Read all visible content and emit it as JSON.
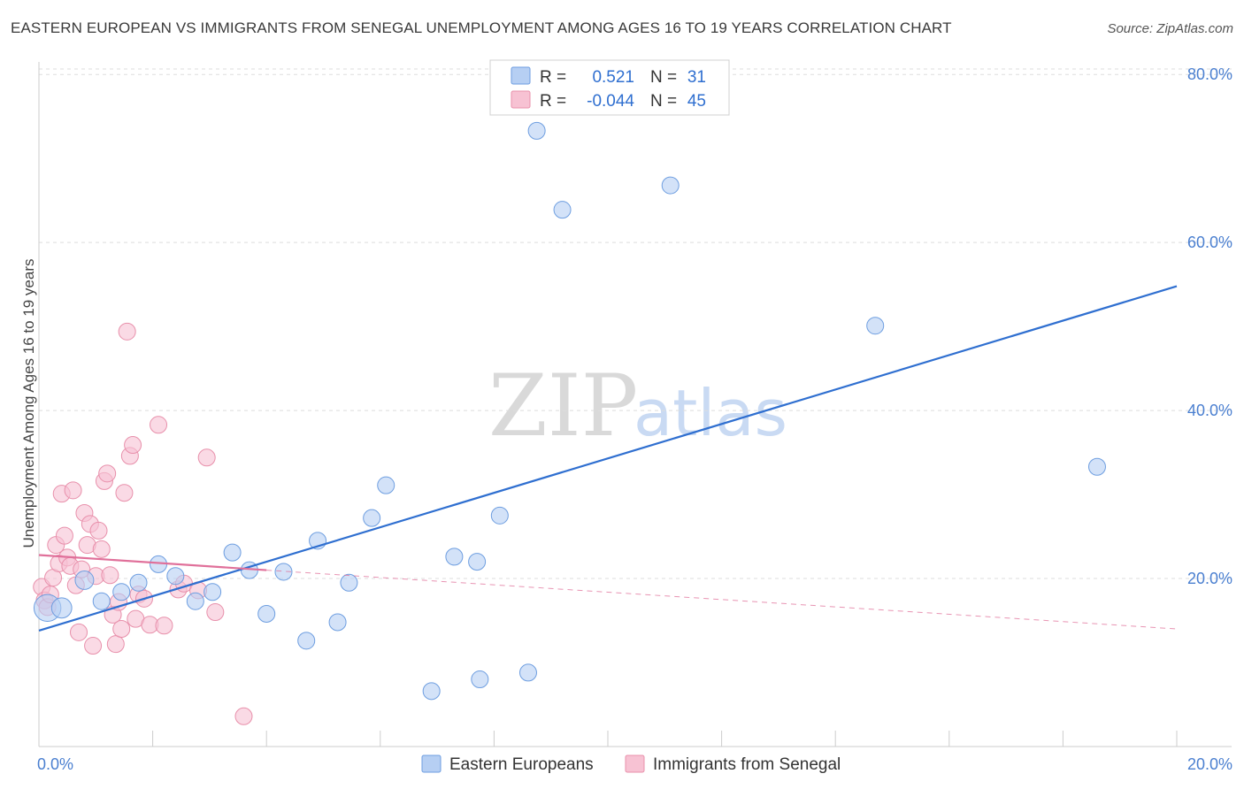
{
  "header": {
    "title": "EASTERN EUROPEAN VS IMMIGRANTS FROM SENEGAL UNEMPLOYMENT AMONG AGES 16 TO 19 YEARS CORRELATION CHART",
    "source": "Source: ZipAtlas.com"
  },
  "watermark": {
    "zip": "ZIP",
    "atlas": "atlas"
  },
  "colors": {
    "blue_fill": "#b6cff3",
    "blue_stroke": "#6e9ee0",
    "blue_line": "#2f6fd0",
    "pink_fill": "#f7c2d3",
    "pink_stroke": "#e890ab",
    "pink_line": "#e0709a"
  },
  "legend": {
    "rows": [
      {
        "r_label": "R =",
        "r_value": "0.521",
        "n_label": "N =",
        "n_value": "31"
      },
      {
        "r_label": "R =",
        "r_value": "-0.044",
        "n_label": "N =",
        "n_value": "45"
      }
    ]
  },
  "chart_data": {
    "type": "scatter",
    "xlabel": "",
    "ylabel": "Unemployment Among Ages 16 to 19 years",
    "xlim": [
      0,
      20
    ],
    "ylim": [
      0,
      81.5
    ],
    "y_ticks": [
      {
        "value": 20,
        "label": "20.0%"
      },
      {
        "value": 40,
        "label": "40.0%"
      },
      {
        "value": 60,
        "label": "60.0%"
      },
      {
        "value": 80,
        "label": "80.0%"
      }
    ],
    "x_tick_labels": [
      {
        "value": 0,
        "label": "0.0%"
      },
      {
        "value": 20,
        "label": "20.0%"
      }
    ],
    "x_minor_ticks": [
      0,
      2,
      4,
      6,
      8,
      10,
      12,
      14,
      16,
      18,
      20
    ],
    "grid": true,
    "legend_position": "top-center",
    "series": [
      {
        "name": "Eastern Europeans",
        "color": "blue",
        "R": 0.521,
        "N": 31,
        "trend": {
          "x0": 0,
          "y0": 13.8,
          "x1": 20,
          "y1": 54.8
        },
        "points": [
          [
            0.15,
            16.5,
            1.6
          ],
          [
            0.4,
            16.5,
            1.2
          ],
          [
            0.8,
            19.8,
            1.1
          ],
          [
            1.1,
            17.3,
            1.0
          ],
          [
            1.45,
            18.4,
            1.0
          ],
          [
            1.75,
            19.5,
            1.0
          ],
          [
            2.1,
            21.7,
            1.0
          ],
          [
            2.4,
            20.3,
            1.0
          ],
          [
            2.75,
            17.3,
            1.0
          ],
          [
            3.05,
            18.4,
            1.0
          ],
          [
            3.4,
            23.1,
            1.0
          ],
          [
            3.7,
            21.0,
            1.0
          ],
          [
            4.0,
            15.8,
            1.0
          ],
          [
            4.3,
            20.8,
            1.0
          ],
          [
            4.7,
            12.6,
            1.0
          ],
          [
            4.9,
            24.5,
            1.0
          ],
          [
            5.25,
            14.8,
            1.0
          ],
          [
            5.45,
            19.5,
            1.0
          ],
          [
            5.85,
            27.2,
            1.0
          ],
          [
            6.1,
            31.1,
            1.0
          ],
          [
            6.9,
            6.6,
            1.0
          ],
          [
            7.3,
            22.6,
            1.0
          ],
          [
            7.7,
            22.0,
            1.0
          ],
          [
            7.75,
            8.0,
            1.0
          ],
          [
            8.1,
            27.5,
            1.0
          ],
          [
            8.6,
            8.8,
            1.0
          ],
          [
            8.75,
            73.3,
            1.0
          ],
          [
            9.2,
            63.9,
            1.0
          ],
          [
            11.1,
            66.8,
            1.0
          ],
          [
            14.7,
            50.1,
            1.0
          ],
          [
            18.6,
            33.3,
            1.0
          ]
        ]
      },
      {
        "name": "Immigrants from Senegal",
        "color": "pink",
        "R": -0.044,
        "N": 45,
        "trend": {
          "x0": 0,
          "y0": 22.8,
          "x1": 4,
          "y1": 21.0,
          "dash_to_x": 20,
          "dash_to_y": 14.0
        },
        "points": [
          [
            0.05,
            19.0,
            1.0
          ],
          [
            0.1,
            17.4,
            1.0
          ],
          [
            0.15,
            16.6,
            1.0
          ],
          [
            0.2,
            18.1,
            1.0
          ],
          [
            0.25,
            20.1,
            1.0
          ],
          [
            0.3,
            24.0,
            1.0
          ],
          [
            0.35,
            21.8,
            1.0
          ],
          [
            0.4,
            30.1,
            1.0
          ],
          [
            0.45,
            25.1,
            1.0
          ],
          [
            0.5,
            22.5,
            1.0
          ],
          [
            0.55,
            21.5,
            1.0
          ],
          [
            0.6,
            30.5,
            1.0
          ],
          [
            0.65,
            19.2,
            1.0
          ],
          [
            0.7,
            13.6,
            1.0
          ],
          [
            0.75,
            21.1,
            1.0
          ],
          [
            0.8,
            27.8,
            1.0
          ],
          [
            0.85,
            24.0,
            1.0
          ],
          [
            0.9,
            26.5,
            1.0
          ],
          [
            0.95,
            12.0,
            1.0
          ],
          [
            1.0,
            20.3,
            1.0
          ],
          [
            1.05,
            25.7,
            1.0
          ],
          [
            1.1,
            23.5,
            1.0
          ],
          [
            1.15,
            31.6,
            1.0
          ],
          [
            1.2,
            32.5,
            1.0
          ],
          [
            1.25,
            20.4,
            1.0
          ],
          [
            1.3,
            15.7,
            1.0
          ],
          [
            1.35,
            12.2,
            1.0
          ],
          [
            1.4,
            17.2,
            1.0
          ],
          [
            1.45,
            14.0,
            1.0
          ],
          [
            1.5,
            30.2,
            1.0
          ],
          [
            1.55,
            49.4,
            1.0
          ],
          [
            1.6,
            34.6,
            1.0
          ],
          [
            1.65,
            35.9,
            1.0
          ],
          [
            1.7,
            15.2,
            1.0
          ],
          [
            1.75,
            18.1,
            1.0
          ],
          [
            1.85,
            17.6,
            1.0
          ],
          [
            1.95,
            14.5,
            1.0
          ],
          [
            2.1,
            38.3,
            1.0
          ],
          [
            2.2,
            14.4,
            1.0
          ],
          [
            2.45,
            18.7,
            1.0
          ],
          [
            2.55,
            19.4,
            1.0
          ],
          [
            2.8,
            18.6,
            1.0
          ],
          [
            2.95,
            34.4,
            1.0
          ],
          [
            3.1,
            16.0,
            1.0
          ],
          [
            3.6,
            3.6,
            1.0
          ]
        ]
      }
    ]
  }
}
